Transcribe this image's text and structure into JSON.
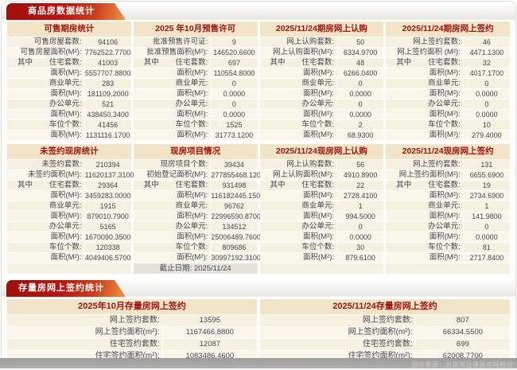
{
  "sections": {
    "commodity": {
      "title": "商品房数据统计"
    },
    "stock": {
      "title": "存量房网上签约统计"
    }
  },
  "watermark": "图片来源：北京市住建委官网截图",
  "commodity_panels": [
    {
      "title": "可售期房统计",
      "rows": [
        {
          "label": "可售房屋套数:",
          "value": "94106"
        },
        {
          "label": "可售房屋面积(M²):",
          "value": "7762522.7700"
        },
        {
          "prefix": "其中",
          "label": "住宅套数:",
          "value": "41003"
        },
        {
          "label": "面积(M²):",
          "value": "5557707.8800"
        },
        {
          "label": "商业单元:",
          "value": "283"
        },
        {
          "label": "面积(M²):",
          "value": "181109.2000"
        },
        {
          "label": "办公单元:",
          "value": "521"
        },
        {
          "label": "面积(M²):",
          "value": "438450.3400"
        },
        {
          "label": "车位个数:",
          "value": "41456"
        },
        {
          "label": "面积(M²):",
          "value": "1131116.1700"
        }
      ]
    },
    {
      "title": "2025 年10月预售许可",
      "rows": [
        {
          "label": "批准预售许可证:",
          "value": "9"
        },
        {
          "label": "批准预售面积(M²):",
          "value": "146520.6600"
        },
        {
          "prefix": "其中",
          "label": "住宅套数:",
          "value": "697"
        },
        {
          "label": "面积(M²):",
          "value": "110554.8000"
        },
        {
          "label": "商业单元:",
          "value": "0"
        },
        {
          "label": "面积(M²):",
          "value": "0.0000"
        },
        {
          "label": "办公单元:",
          "value": "0"
        },
        {
          "label": "面积(M²):",
          "value": "0.0000"
        },
        {
          "label": "车位个数:",
          "value": "1525"
        },
        {
          "label": "面积(M²):",
          "value": "31773.1200"
        }
      ]
    },
    {
      "title": "2025/11/24期房网上认购",
      "rows": [
        {
          "label": "网上认购套数:",
          "value": "50"
        },
        {
          "label": "网上认购面积(M²):",
          "value": "6334.9700"
        },
        {
          "prefix": "其中",
          "label": "住宅套数:",
          "value": "48"
        },
        {
          "label": "面积(M²):",
          "value": "6266.0400"
        },
        {
          "label": "商业单元:",
          "value": "0"
        },
        {
          "label": "面积(M²):",
          "value": "0.0000"
        },
        {
          "label": "办公单元:",
          "value": "0"
        },
        {
          "label": "面积(M²):",
          "value": "0.0000"
        },
        {
          "label": "车位个数:",
          "value": "2"
        },
        {
          "label": "面积(M²):",
          "value": "68.9300"
        }
      ]
    },
    {
      "title": "2025/11/24期房网上签约",
      "rows": [
        {
          "label": "网上签约套数:",
          "value": "46"
        },
        {
          "label": "网上签约面积 (M²):",
          "value": "4471.1300"
        },
        {
          "prefix": "其中",
          "label": "住宅套数:",
          "value": "32"
        },
        {
          "label": "面积(M²):",
          "value": "4017.1700"
        },
        {
          "label": "商业单元:",
          "value": "0"
        },
        {
          "label": "面积(M²):",
          "value": "0.0000"
        },
        {
          "label": "办公单元:",
          "value": "0"
        },
        {
          "label": "面积(M²):",
          "value": "0.0000"
        },
        {
          "label": "车位个数:",
          "value": "10"
        },
        {
          "label": "面积(M²):",
          "value": "279.4000"
        }
      ]
    },
    {
      "title": "未签约现房统计",
      "footer": "",
      "rows": [
        {
          "label": "未签约套数:",
          "value": "210394"
        },
        {
          "label": "未签约面积(M²):",
          "value": "11620137.3100"
        },
        {
          "prefix": "其中",
          "label": "住宅套数:",
          "value": "29364"
        },
        {
          "label": "面积(M²):",
          "value": "3459283.0000"
        },
        {
          "label": "商业单元:",
          "value": "1915"
        },
        {
          "label": "面积(M²):",
          "value": "879010.7900"
        },
        {
          "label": "办公单元:",
          "value": "5165"
        },
        {
          "label": "面积(M²):",
          "value": "1670090.3500"
        },
        {
          "label": "车位个数:",
          "value": "120338"
        },
        {
          "label": "面积(M²):",
          "value": "4049406.5700"
        }
      ]
    },
    {
      "title": "现房项目情况",
      "footer": "截止日期: 2025/11/24",
      "rows": [
        {
          "label": "现房项目个数:",
          "value": "39434"
        },
        {
          "label": "初始登记面积(M²):",
          "value": "277855468.1200"
        },
        {
          "prefix": "其中",
          "label": "住宅套数:",
          "value": "931498"
        },
        {
          "label": "面积(M²):",
          "value": "116182445.1500"
        },
        {
          "label": "商业单元:",
          "value": "96762"
        },
        {
          "label": "面积(M²):",
          "value": "22996590.8700"
        },
        {
          "label": "办公单元:",
          "value": "134512"
        },
        {
          "label": "面积(M²):",
          "value": "25006489.7600"
        },
        {
          "label": "车位个数:",
          "value": "809686"
        },
        {
          "label": "面积(M²):",
          "value": "30997192.3100"
        }
      ]
    },
    {
      "title": "2025/11/24现房网上认购",
      "footer": "",
      "rows": [
        {
          "label": "网上认购套数:",
          "value": "56"
        },
        {
          "label": "网上认购面积(M²):",
          "value": "4910.8900"
        },
        {
          "prefix": "其中",
          "label": "住宅套数:",
          "value": "22"
        },
        {
          "label": "面积(M²):",
          "value": "2728.4100"
        },
        {
          "label": "商业单元:",
          "value": "1"
        },
        {
          "label": "面积(M²):",
          "value": "994.5000"
        },
        {
          "label": "办公单元:",
          "value": "0"
        },
        {
          "label": "面积(M²):",
          "value": "0.0000"
        },
        {
          "label": "车位个数:",
          "value": "30"
        },
        {
          "label": "面积(M²):",
          "value": "879.6100"
        }
      ]
    },
    {
      "title": "2025/11/24现房网上签约",
      "footer": "",
      "rows": [
        {
          "label": "网上签约套数:",
          "value": "131"
        },
        {
          "label": "网上签约面积(M²):",
          "value": "6655.6900"
        },
        {
          "prefix": "其中",
          "label": "住宅套数:",
          "value": "19"
        },
        {
          "label": "面积(M²):",
          "value": "2734.6900"
        },
        {
          "label": "商业单元:",
          "value": "1"
        },
        {
          "label": "面积(M²):",
          "value": "141.9800"
        },
        {
          "label": "办公单元:",
          "value": "0"
        },
        {
          "label": "面积(M²):",
          "value": "0.0000"
        },
        {
          "label": "车位个数:",
          "value": "81"
        },
        {
          "label": "面积(M²):",
          "value": "2717.8400"
        }
      ]
    }
  ],
  "stock_panels": [
    {
      "title": "2025年10月存量房网上签约",
      "rows": [
        {
          "label": "网上签约套数:",
          "value": "13595"
        },
        {
          "label": "网上签约面积(m²):",
          "value": "1167466.8800"
        },
        {
          "label": "住宅签约套数:",
          "value": "12087"
        },
        {
          "label": "住宅签约面积(m²):",
          "value": "1083486.4600"
        }
      ]
    },
    {
      "title": "2025/11/24存量房网上签约",
      "rows": [
        {
          "label": "网上签约套数:",
          "value": "807"
        },
        {
          "label": "网上签约面积(m²):",
          "value": "66334.5500"
        },
        {
          "label": "住宅签约套数:",
          "value": "699"
        },
        {
          "label": "住宅签约面积(m²):",
          "value": "62008.7700"
        }
      ]
    }
  ]
}
